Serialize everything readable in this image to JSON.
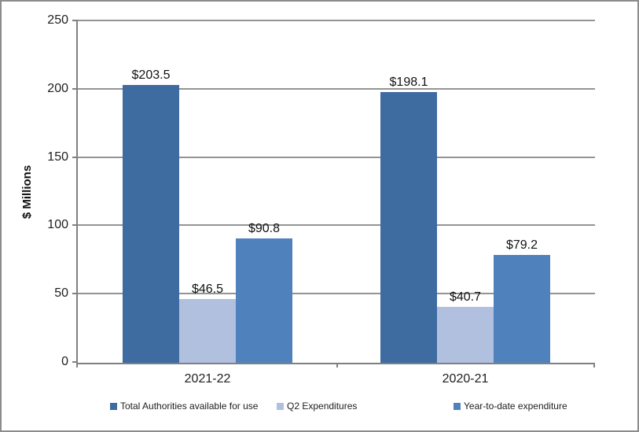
{
  "chart_data": {
    "type": "bar",
    "title": "",
    "ylabel": "$ Millions",
    "xlabel": "",
    "categories": [
      "2021-22",
      "2020-21"
    ],
    "series": [
      {
        "name": "Total Authorities available for use",
        "color": "#3E6BA0",
        "values": [
          203.5,
          198.1
        ]
      },
      {
        "name": "Q2 Expenditures",
        "color": "#B1C0DE",
        "values": [
          46.5,
          40.7
        ]
      },
      {
        "name": "Year-to-date expenditure",
        "color": "#4F81BD",
        "values": [
          90.8,
          79.2
        ]
      }
    ],
    "value_label_prefix": "$",
    "value_labels": [
      [
        "$203.5",
        "$198.1"
      ],
      [
        "$46.5",
        "$40.7"
      ],
      [
        "$90.8",
        "$79.2"
      ]
    ],
    "ylim": [
      0,
      250
    ],
    "yticks": [
      0,
      50,
      100,
      150,
      200,
      250
    ],
    "grid": true,
    "legend_position": "bottom",
    "colors": {
      "gridline": "#949494",
      "axis": "#808080",
      "frame_border": "#8C8C8C",
      "text": "#202020"
    }
  }
}
